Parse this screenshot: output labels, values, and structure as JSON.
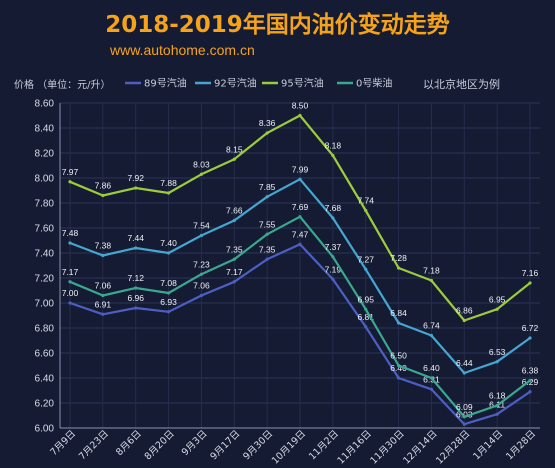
{
  "header": {
    "title": "2018-2019年国内油价变动走势",
    "subtitle": "www.autohome.com.cn",
    "unit_label": "价格 （单位：元/升）",
    "note": "以北京地区为例"
  },
  "chart_data": {
    "type": "line",
    "title": "2018-2019年国内油价变动走势",
    "ylabel": "价格 （单位：元/升）",
    "ylim": [
      6.0,
      8.6
    ],
    "yticks": [
      "6.00",
      "6.20",
      "6.40",
      "6.60",
      "6.80",
      "7.00",
      "7.20",
      "7.40",
      "7.60",
      "7.80",
      "8.00",
      "8.20",
      "8.40",
      "8.60"
    ],
    "categories": [
      "7月9日",
      "7月23日",
      "8月6日",
      "8月20日",
      "9月3日",
      "9月17日",
      "9月30日",
      "10月19日",
      "11月2日",
      "11月16日",
      "11月30日",
      "12月14日",
      "12月28日",
      "1月14日",
      "1月28日"
    ],
    "grid": true,
    "legend_position": "top",
    "series": [
      {
        "name": "89号汽油",
        "color": "#4d5fc4",
        "values": [
          7.0,
          6.91,
          6.96,
          6.93,
          7.06,
          7.17,
          7.35,
          7.47,
          7.19,
          6.81,
          6.4,
          6.31,
          6.03,
          6.11,
          6.29
        ]
      },
      {
        "name": "92号汽油",
        "color": "#45a6d0",
        "values": [
          7.48,
          7.38,
          7.44,
          7.4,
          7.54,
          7.66,
          7.85,
          7.99,
          7.68,
          7.27,
          6.84,
          6.74,
          6.44,
          6.53,
          6.72
        ]
      },
      {
        "name": "95号汽油",
        "color": "#9ccc3a",
        "values": [
          7.97,
          7.86,
          7.92,
          7.88,
          8.03,
          8.15,
          8.36,
          8.5,
          8.18,
          7.74,
          7.28,
          7.18,
          6.86,
          6.95,
          7.16
        ]
      },
      {
        "name": "0号柴油",
        "color": "#3aa890",
        "values": [
          7.17,
          7.06,
          7.12,
          7.08,
          7.23,
          7.35,
          7.55,
          7.69,
          7.37,
          6.95,
          6.5,
          6.4,
          6.09,
          6.18,
          6.38
        ]
      }
    ]
  }
}
